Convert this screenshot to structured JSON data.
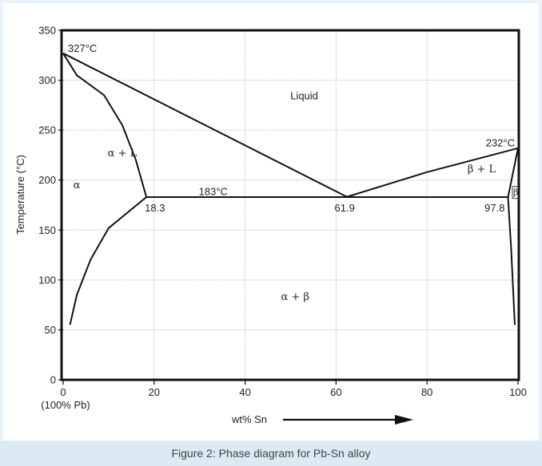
{
  "chart_data": {
    "type": "line",
    "title": "",
    "xlabel": "wt% Sn",
    "ylabel": "Temperature (°C)",
    "xlim": [
      0,
      100
    ],
    "ylim": [
      0,
      350
    ],
    "x_ticks": [
      "0",
      "20",
      "40",
      "60",
      "80",
      "100"
    ],
    "x_tick_values": [
      0,
      20,
      40,
      60,
      80,
      100
    ],
    "y_ticks": [
      "0",
      "50",
      "100",
      "150",
      "200",
      "250",
      "300",
      "350"
    ],
    "y_tick_values": [
      0,
      50,
      100,
      150,
      200,
      250,
      300,
      350
    ],
    "x_sublabel": "(100% Pb)",
    "grid": true,
    "series": [
      {
        "values": [
          [
            0,
            327
          ],
          [
            62.5,
            183
          ]
        ]
      },
      {
        "values": [
          [
            0,
            327
          ],
          [
            3,
            305
          ],
          [
            9,
            285
          ],
          [
            13,
            255
          ],
          [
            16,
            220
          ],
          [
            18.3,
            183
          ]
        ]
      },
      {
        "values": [
          [
            62.2,
            183
          ],
          [
            80,
            208
          ],
          [
            100,
            232
          ]
        ]
      },
      {
        "values": [
          [
            18.3,
            183
          ],
          [
            97.8,
            183
          ]
        ]
      },
      {
        "values": [
          [
            18.3,
            183
          ],
          [
            10,
            152
          ],
          [
            6,
            120
          ],
          [
            3,
            85
          ],
          [
            1.5,
            55
          ]
        ]
      },
      {
        "values": [
          [
            97.8,
            183
          ],
          [
            98.5,
            130
          ],
          [
            99.3,
            55
          ]
        ]
      },
      {
        "values": [
          [
            97.8,
            183
          ],
          [
            100,
            232
          ]
        ]
      }
    ],
    "annotations": [
      {
        "text": "327°C",
        "x": 0,
        "y": 327
      },
      {
        "text": "Liquid",
        "x": 53,
        "y": 284
      },
      {
        "text": "232°C",
        "x": 100,
        "y": 232
      },
      {
        "text": "α + L",
        "x": 13,
        "y": 227
      },
      {
        "text": "β + L",
        "x": 92,
        "y": 211
      },
      {
        "text": "α",
        "x": 3,
        "y": 195
      },
      {
        "text": "183°C",
        "x": 33,
        "y": 188
      },
      {
        "text": "18.3",
        "x": 18.3,
        "y": 183
      },
      {
        "text": "61.9",
        "x": 61.9,
        "y": 183
      },
      {
        "text": "97.8",
        "x": 97.8,
        "y": 183
      },
      {
        "text": "β",
        "x": 99.5,
        "y": 188
      },
      {
        "text": "α + β",
        "x": 51,
        "y": 83
      }
    ]
  },
  "caption": "Figure 2: Phase diagram for Pb-Sn alloy",
  "colors": {
    "line": "#111111",
    "grid": "#cfcfcf",
    "background": "#ffffff",
    "caption_bar": "#dbeaf3",
    "caption_text": "#444444",
    "page": "#e8f2f8"
  }
}
